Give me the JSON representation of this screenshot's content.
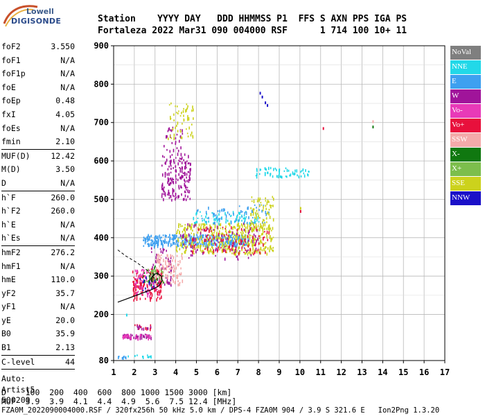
{
  "logo": {
    "top_text": "Lowell",
    "main_text": "DIGISONDE"
  },
  "header": {
    "line1": "Station    YYYY DAY   DDD HHMMSS P1  FFS S AXN PPS IGA PS",
    "line2": "Fortaleza 2022 Mar31 090 004000 RSF      1 714 100 10+ 11"
  },
  "params": {
    "group1": [
      {
        "label": "foF2",
        "value": "3.550"
      },
      {
        "label": "foF1",
        "value": "N/A"
      },
      {
        "label": "foF1p",
        "value": "N/A"
      },
      {
        "label": "foE",
        "value": "N/A"
      },
      {
        "label": "foEp",
        "value": "0.48"
      },
      {
        "label": "fxI",
        "value": "4.05"
      },
      {
        "label": "foEs",
        "value": "N/A"
      },
      {
        "label": "fmin",
        "value": "2.10"
      }
    ],
    "group2": [
      {
        "label": "MUF(D)",
        "value": "12.42"
      },
      {
        "label": "M(D)",
        "value": "3.50"
      },
      {
        "label": "D",
        "value": "N/A"
      }
    ],
    "group3": [
      {
        "label": "h`F",
        "value": "260.0"
      },
      {
        "label": "h`F2",
        "value": "260.0"
      },
      {
        "label": "h`E",
        "value": "N/A"
      },
      {
        "label": "h`Es",
        "value": "N/A"
      }
    ],
    "group4": [
      {
        "label": "hmF2",
        "value": "276.2"
      },
      {
        "label": "hmF1",
        "value": "N/A"
      },
      {
        "label": "hmE",
        "value": "110.0"
      },
      {
        "label": "yF2",
        "value": "35.7"
      },
      {
        "label": "yF1",
        "value": "N/A"
      },
      {
        "label": "yE",
        "value": "20.0"
      },
      {
        "label": "B0",
        "value": "35.9"
      },
      {
        "label": "B1",
        "value": "2.13"
      }
    ],
    "group5": [
      {
        "label": "C-level",
        "value": "44"
      }
    ],
    "auto": [
      "Auto:",
      "Artist5",
      "500200"
    ]
  },
  "legend": [
    {
      "name": "NoVal",
      "color": "#7f7f7f"
    },
    {
      "name": "NNE",
      "color": "#22d8e8"
    },
    {
      "name": "E",
      "color": "#3ea0f0"
    },
    {
      "name": "W",
      "color": "#a0149a"
    },
    {
      "name": "Vo-",
      "color": "#e83ab8"
    },
    {
      "name": "Vo+",
      "color": "#e8103c"
    },
    {
      "name": "SSW",
      "color": "#f4aaaa"
    },
    {
      "name": "X-",
      "color": "#107810"
    },
    {
      "name": "X+",
      "color": "#7cbe4c"
    },
    {
      "name": "SSE",
      "color": "#ccd21c"
    },
    {
      "name": "NNW",
      "color": "#1a10c8"
    }
  ],
  "chart_data": {
    "type": "scatter",
    "title": "",
    "xlabel": "",
    "ylabel": "",
    "xlim": [
      1,
      17
    ],
    "ylim": [
      80,
      900
    ],
    "xticks": [
      1,
      2,
      3,
      4,
      5,
      6,
      7,
      8,
      9,
      10,
      11,
      12,
      13,
      14,
      15,
      16,
      17
    ],
    "yticks": [
      80,
      200,
      300,
      400,
      500,
      600,
      700,
      800,
      900
    ],
    "grid": true,
    "legend_position": "right",
    "clusters": [
      {
        "series": "W",
        "x": [
          3.3,
          4.7
        ],
        "y": [
          500,
          620
        ],
        "n": 180
      },
      {
        "series": "W",
        "x": [
          3.4,
          4.3
        ],
        "y": [
          620,
          690
        ],
        "n": 30
      },
      {
        "series": "SSE",
        "x": [
          3.6,
          4.9
        ],
        "y": [
          660,
          760
        ],
        "n": 55
      },
      {
        "series": "E",
        "x": [
          2.4,
          7.5
        ],
        "y": [
          380,
          410
        ],
        "n": 380
      },
      {
        "series": "SSE",
        "x": [
          4.0,
          8.7
        ],
        "y": [
          360,
          440
        ],
        "n": 420
      },
      {
        "series": "W",
        "x": [
          4.2,
          8.0
        ],
        "y": [
          345,
          440
        ],
        "n": 90
      },
      {
        "series": "Vo+",
        "x": [
          4.6,
          8.5
        ],
        "y": [
          360,
          430
        ],
        "n": 90
      },
      {
        "series": "NNE",
        "x": [
          4.8,
          8.0
        ],
        "y": [
          440,
          470
        ],
        "n": 70
      },
      {
        "series": "E",
        "x": [
          5.0,
          8.5
        ],
        "y": [
          440,
          490
        ],
        "n": 60
      },
      {
        "series": "SSE",
        "x": [
          7.6,
          8.7
        ],
        "y": [
          420,
          510
        ],
        "n": 70
      },
      {
        "series": "NNE",
        "x": [
          7.8,
          10.5
        ],
        "y": [
          560,
          585
        ],
        "n": 60
      },
      {
        "series": "W",
        "x": [
          2.8,
          3.8
        ],
        "y": [
          280,
          380
        ],
        "n": 60
      },
      {
        "series": "SSW",
        "x": [
          3.0,
          4.3
        ],
        "y": [
          280,
          360
        ],
        "n": 110
      },
      {
        "series": "Vo+",
        "x": [
          1.9,
          3.3
        ],
        "y": [
          240,
          320
        ],
        "n": 140
      },
      {
        "series": "Vo-",
        "x": [
          2.0,
          3.2
        ],
        "y": [
          250,
          320
        ],
        "n": 60
      },
      {
        "series": "X-",
        "x": [
          2.4,
          3.4
        ],
        "y": [
          280,
          330
        ],
        "n": 25
      },
      {
        "series": "X+",
        "x": [
          2.5,
          3.4
        ],
        "y": [
          280,
          320
        ],
        "n": 20
      },
      {
        "series": "NNW",
        "x": [
          2.0,
          3.0
        ],
        "y": [
          260,
          300
        ],
        "n": 12
      },
      {
        "series": "W",
        "x": [
          1.4,
          2.8
        ],
        "y": [
          140,
          150
        ],
        "n": 40
      },
      {
        "series": "Vo-",
        "x": [
          1.4,
          2.8
        ],
        "y": [
          140,
          150
        ],
        "n": 30
      },
      {
        "series": "Vo+",
        "x": [
          2.0,
          2.8
        ],
        "y": [
          165,
          175
        ],
        "n": 10
      },
      {
        "series": "W",
        "x": [
          2.0,
          2.8
        ],
        "y": [
          165,
          175
        ],
        "n": 10
      },
      {
        "series": "E",
        "x": [
          1.1,
          1.6
        ],
        "y": [
          88,
          95
        ],
        "n": 12
      },
      {
        "series": "NNE",
        "x": [
          1.6,
          2.8
        ],
        "y": [
          90,
          96
        ],
        "n": 12
      }
    ],
    "points": [
      {
        "series": "NNW",
        "x": 8.05,
        "y": 780
      },
      {
        "series": "NNW",
        "x": 8.15,
        "y": 770
      },
      {
        "series": "NNW",
        "x": 8.3,
        "y": 755
      },
      {
        "series": "NNW",
        "x": 8.4,
        "y": 748
      },
      {
        "series": "Vo+",
        "x": 11.1,
        "y": 688
      },
      {
        "series": "X-",
        "x": 13.5,
        "y": 692
      },
      {
        "series": "SSW",
        "x": 13.5,
        "y": 706
      },
      {
        "series": "NNE",
        "x": 1.6,
        "y": 202
      },
      {
        "series": "SSE",
        "x": 10.0,
        "y": 480
      },
      {
        "series": "Vo+",
        "x": 10.0,
        "y": 472
      }
    ],
    "profile_curve": {
      "x": [
        1.2,
        1.6,
        2.0,
        2.5,
        2.9,
        3.2,
        3.35,
        3.3,
        3.1,
        2.9,
        2.8,
        2.85
      ],
      "y": [
        232,
        240,
        248,
        258,
        266,
        275,
        288,
        300,
        308,
        302,
        292,
        283
      ]
    },
    "trace_curve": {
      "x": [
        1.2,
        1.6,
        2.1,
        2.6,
        2.9,
        3.05
      ],
      "y": [
        368,
        352,
        336,
        316,
        298,
        290
      ]
    }
  },
  "footer": {
    "line1": "D    100  200  400  600  800 1000 1500 3000 [km]",
    "line2": "MUF  3.9  3.9  4.1  4.4  4.9  5.6  7.5 12.4 [MHz]",
    "line3": "FZA0M_2022090004000.RSF / 320fx256h 50 kHz 5.0 km / DPS-4 FZA0M 904 / 3.9 S 321.6 E   Ion2Png 1.3.20"
  }
}
